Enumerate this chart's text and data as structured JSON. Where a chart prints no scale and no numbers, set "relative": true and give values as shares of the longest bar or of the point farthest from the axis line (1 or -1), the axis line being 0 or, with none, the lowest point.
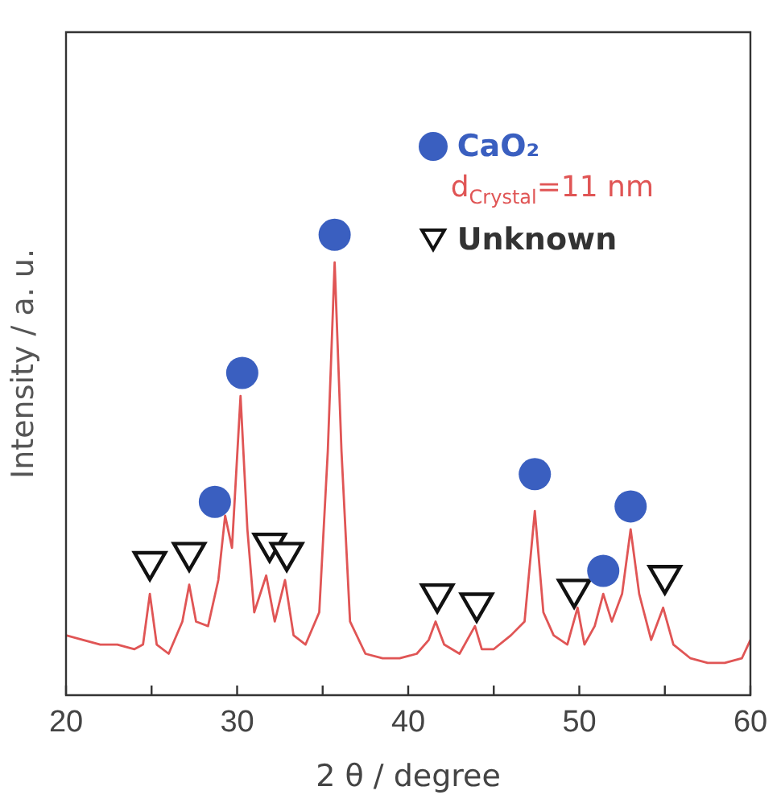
{
  "chart_data": {
    "type": "line",
    "xlabel": "2 θ / degree",
    "ylabel": "Intensity / a. u.",
    "relative": true,
    "xlim": [
      20,
      60
    ],
    "xticks": [
      20,
      {
        "value": 25,
        "label": null
      },
      30,
      {
        "value": 35,
        "label": null
      },
      40,
      {
        "value": 45,
        "label": null
      },
      50,
      {
        "value": 55,
        "label": null
      },
      60
    ],
    "tick_labels": "x",
    "grid": false,
    "legend": "top right",
    "marker": "none",
    "line_style": "solid",
    "annotations": [
      "d$_{Crystal}$=11 nm"
    ],
    "series": [
      {
        "type": "line",
        "color": "#e05555",
        "x": [
          20,
          21,
          22,
          23,
          24,
          24.5,
          24.9,
          25.3,
          26,
          26.8,
          27.2,
          27.6,
          28.3,
          28.9,
          29.3,
          29.7,
          30.2,
          30.6,
          31,
          31.7,
          32.2,
          32.8,
          33.3,
          34,
          34.8,
          35.3,
          35.7,
          36.1,
          36.6,
          37.5,
          38.5,
          39.5,
          40.5,
          41.2,
          41.6,
          42.1,
          43,
          43.9,
          44.3,
          45,
          46,
          46.8,
          47.4,
          47.9,
          48.5,
          49.3,
          49.9,
          50.3,
          50.9,
          51.4,
          51.9,
          52.5,
          53,
          53.5,
          54.2,
          54.9,
          55.5,
          56.5,
          57.5,
          58.5,
          59.5,
          60
        ],
        "values": [
          0.13,
          0.12,
          0.11,
          0.11,
          0.1,
          0.11,
          0.22,
          0.11,
          0.09,
          0.16,
          0.24,
          0.16,
          0.15,
          0.25,
          0.39,
          0.32,
          0.65,
          0.36,
          0.18,
          0.26,
          0.16,
          0.25,
          0.13,
          0.11,
          0.18,
          0.53,
          0.94,
          0.53,
          0.16,
          0.09,
          0.08,
          0.08,
          0.09,
          0.12,
          0.16,
          0.11,
          0.09,
          0.15,
          0.1,
          0.1,
          0.13,
          0.16,
          0.4,
          0.18,
          0.13,
          0.11,
          0.19,
          0.11,
          0.15,
          0.22,
          0.16,
          0.22,
          0.36,
          0.22,
          0.12,
          0.19,
          0.11,
          0.08,
          0.07,
          0.07,
          0.08,
          0.12
        ]
      },
      {
        "type": "scatter",
        "name": "CaO₂",
        "color": "#3a5fc0",
        "marker": "circle",
        "x": [
          28.7,
          30.3,
          35.7,
          47.4,
          51.4,
          53
        ],
        "values": [
          0.42,
          0.7,
          1,
          0.48,
          0.27,
          0.41
        ]
      },
      {
        "type": "scatter",
        "name": "Unknown",
        "color": "#111111",
        "marker": "triangle",
        "x": [
          24.9,
          27.2,
          31.9,
          32.9,
          41.7,
          44,
          49.7,
          55
        ],
        "values": [
          0.29,
          0.31,
          0.33,
          0.31,
          0.22,
          0.2,
          0.23,
          0.26
        ]
      }
    ]
  }
}
